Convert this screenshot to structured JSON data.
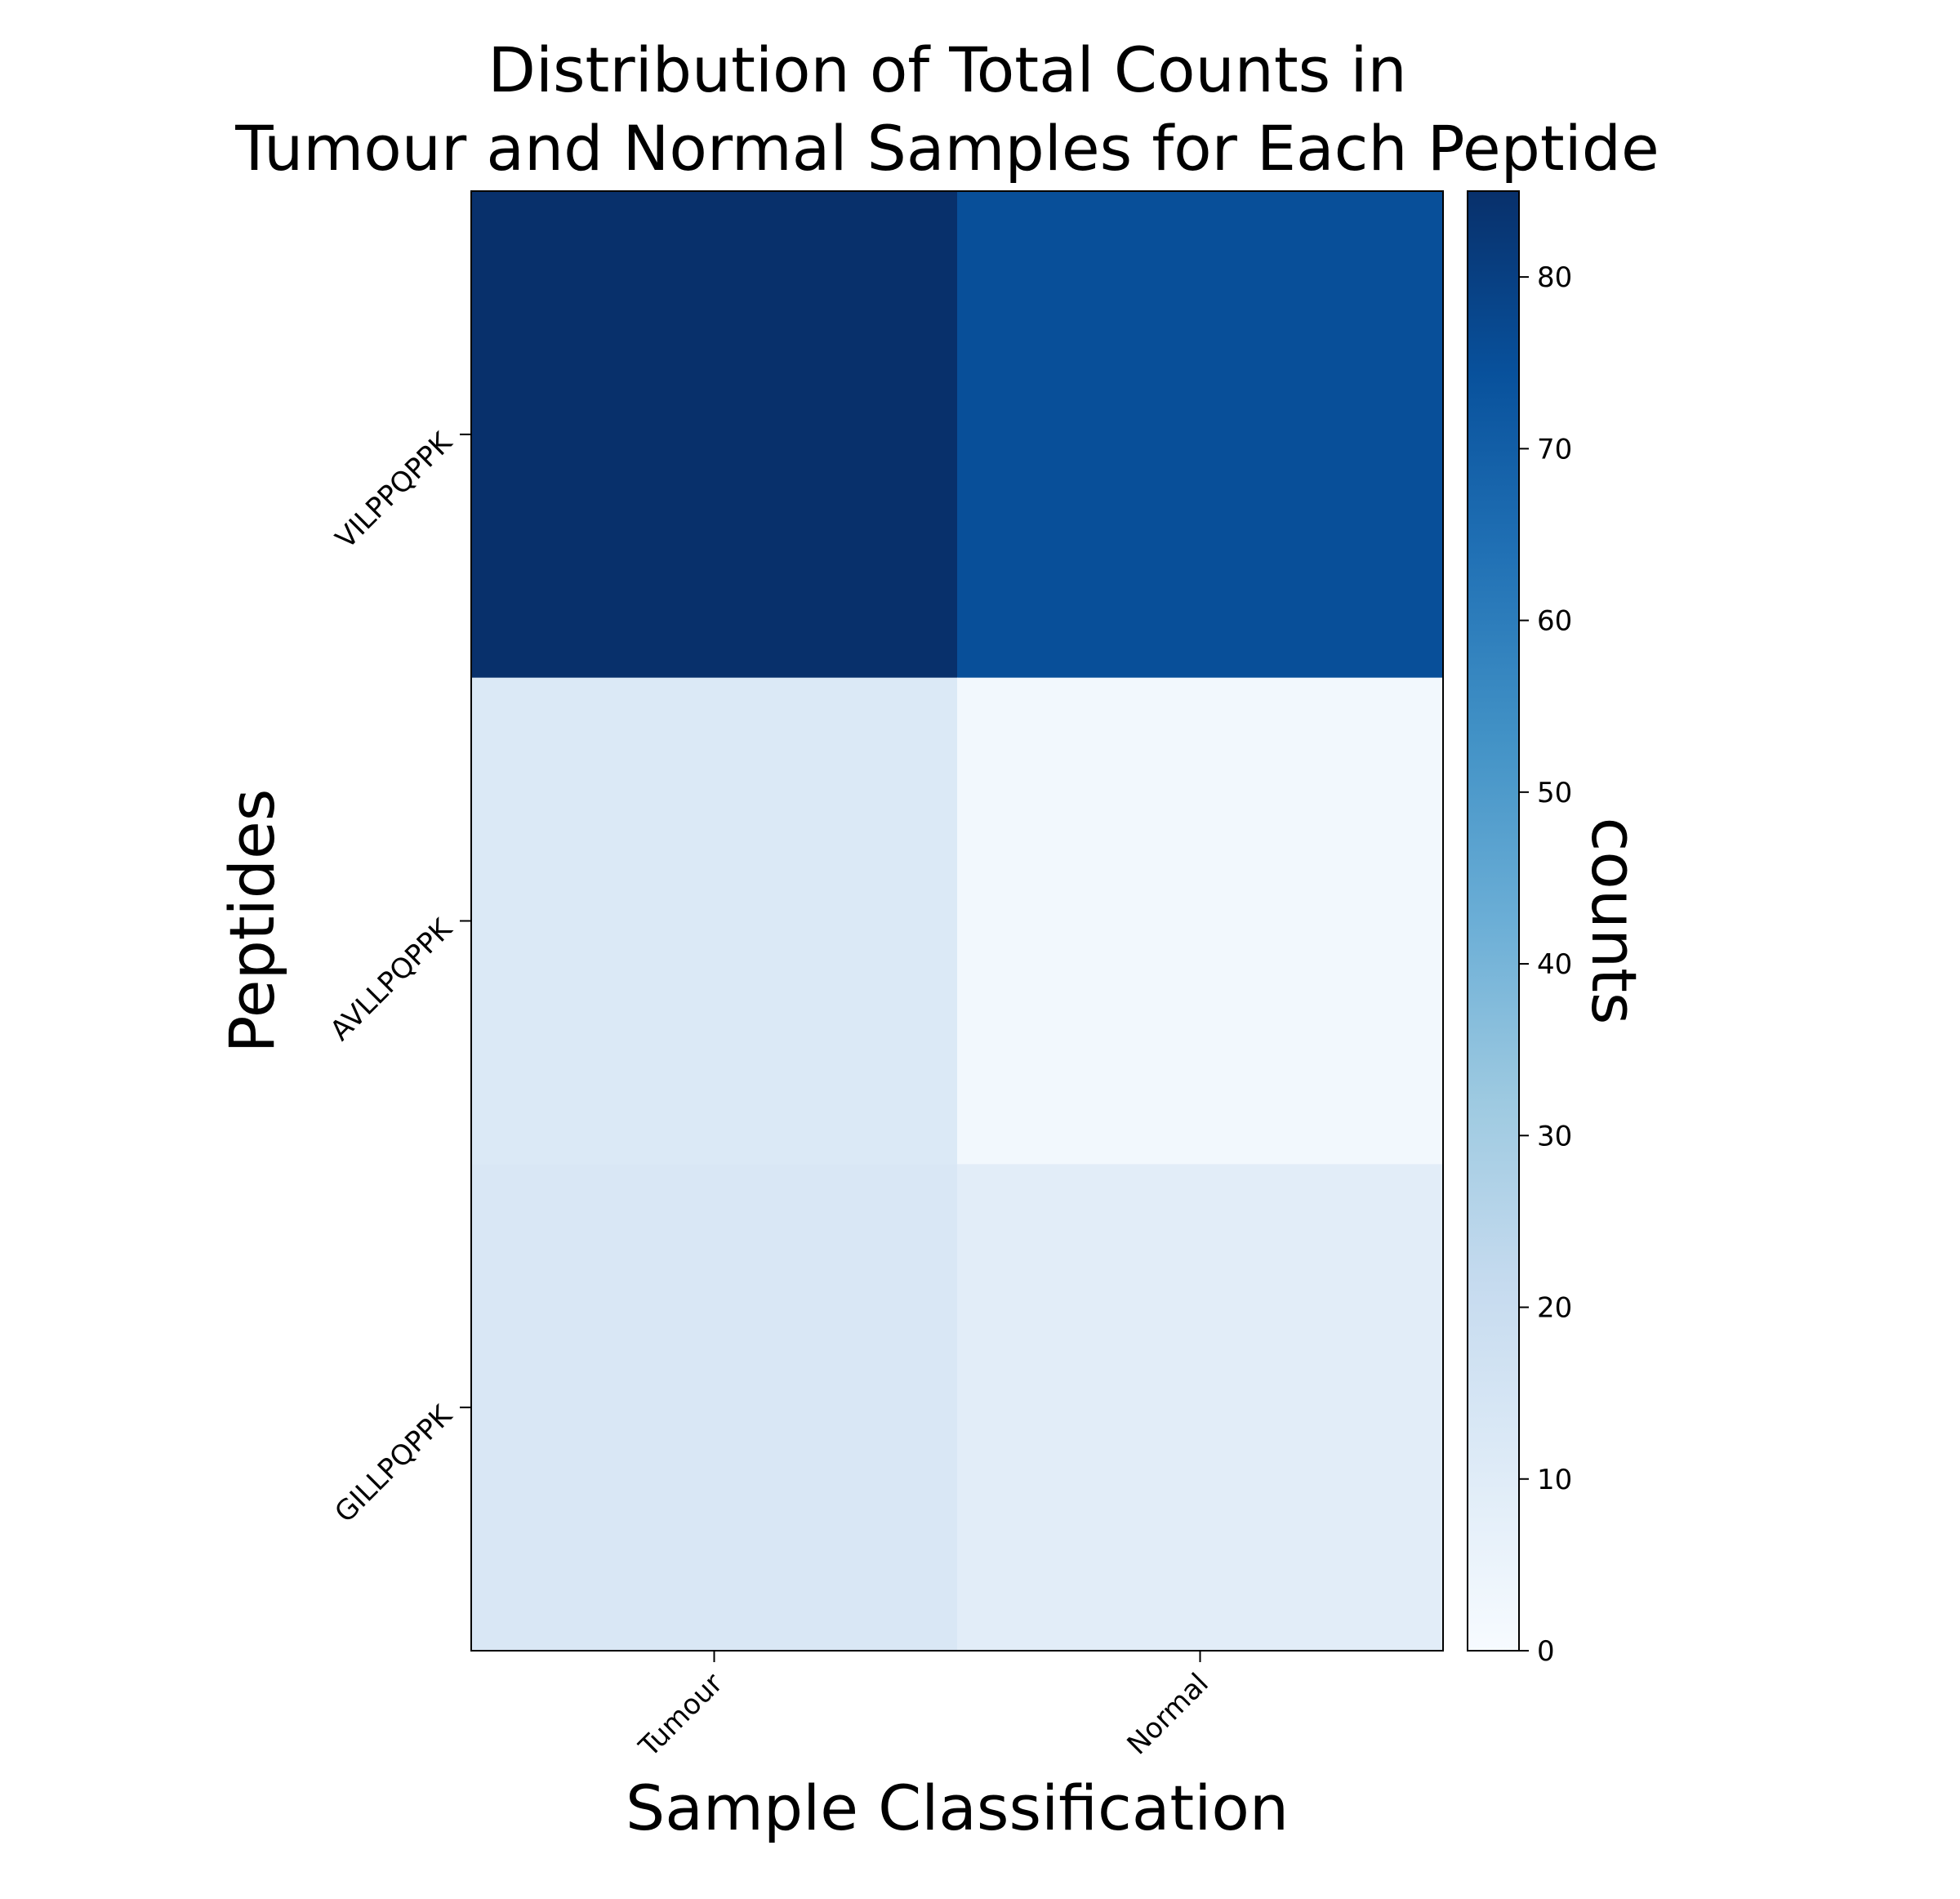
{
  "chart_data": {
    "type": "heatmap",
    "title": "Distribution of Total Counts in\nTumour and Normal Samples for Each Peptide",
    "xlabel": "Sample Classification",
    "ylabel": "Peptides",
    "x_categories": [
      "Tumour",
      "Normal"
    ],
    "y_categories": [
      "VILPPQPPK",
      "AVLLPQPPK",
      "GILLPQPPK"
    ],
    "values": [
      [
        85,
        75
      ],
      [
        12,
        2
      ],
      [
        13,
        9
      ]
    ],
    "colormap": "Blues",
    "colorbar": {
      "label": "counts",
      "min": 0,
      "max": 85,
      "ticks": [
        0,
        10,
        20,
        30,
        40,
        50,
        60,
        70,
        80
      ]
    },
    "grid": false
  }
}
